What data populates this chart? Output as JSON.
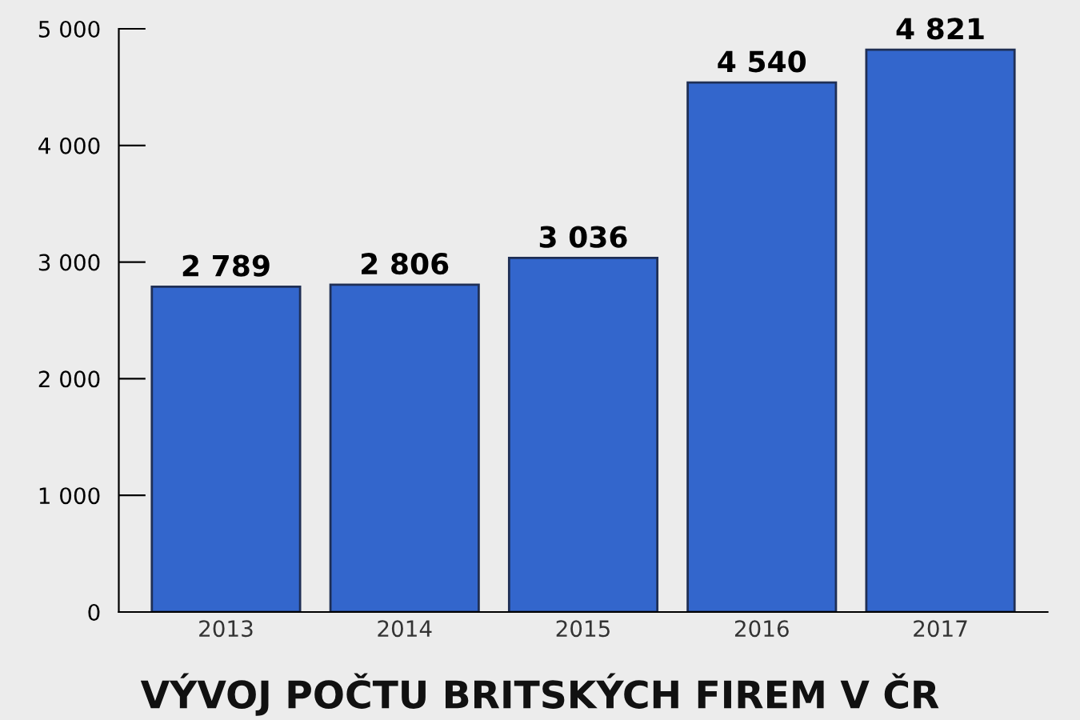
{
  "chart_data": {
    "type": "bar",
    "title": "VÝVOJ POČTU BRITSKÝCH FIREM V ČR",
    "categories": [
      "2013",
      "2014",
      "2015",
      "2016",
      "2017"
    ],
    "values": [
      2789,
      2806,
      3036,
      4540,
      4821
    ],
    "value_labels": [
      "2 789",
      "2 806",
      "3 036",
      "4 540",
      "4 821"
    ],
    "color": "#3366cc",
    "ylim": [
      0,
      5000
    ],
    "yticks": [
      0,
      {
        "value": 1000,
        "label": "1 000"
      },
      {
        "value": 2000,
        "label": "2 000"
      },
      {
        "value": 3000,
        "label": "3 000"
      },
      {
        "value": 4000,
        "label": "4 000"
      },
      {
        "value": 5000,
        "label": "5 000"
      }
    ],
    "grid": false,
    "legend": false
  }
}
